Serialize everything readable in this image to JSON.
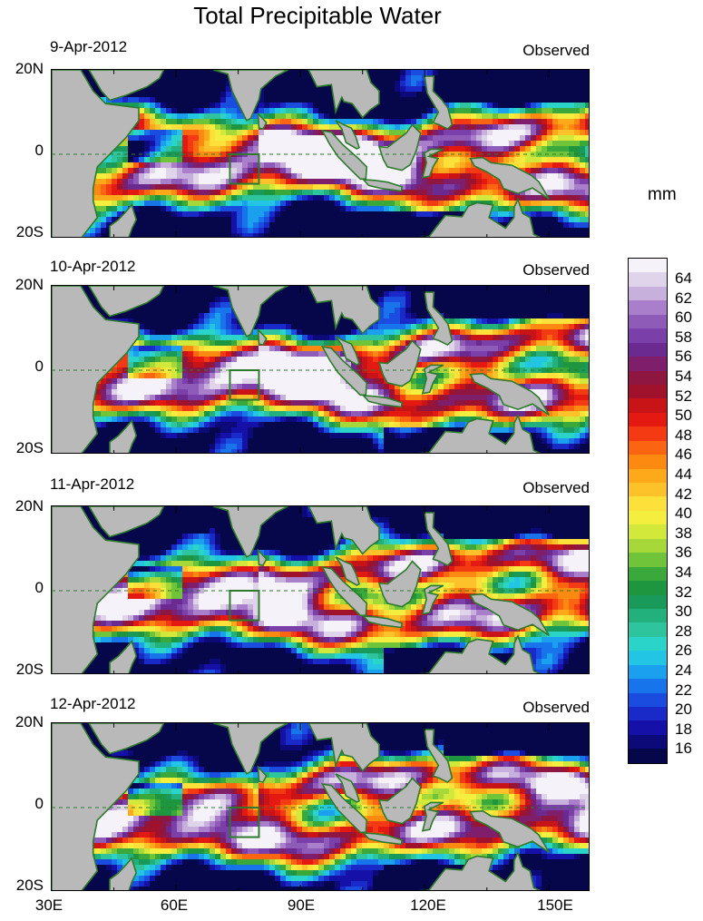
{
  "title": "Total Precipitable Water",
  "unit": "mm",
  "observed_label": "Observed",
  "lat_labels": [
    "20N",
    "0",
    "20S"
  ],
  "lon_labels": [
    "30E",
    "60E",
    "90E",
    "120E",
    "150E"
  ],
  "panels": [
    {
      "date": "9-Apr-2012"
    },
    {
      "date": "10-Apr-2012"
    },
    {
      "date": "11-Apr-2012"
    },
    {
      "date": "12-Apr-2012"
    }
  ],
  "colorbar": {
    "tick_labels": [
      "64",
      "62",
      "60",
      "58",
      "56",
      "54",
      "52",
      "50",
      "48",
      "46",
      "44",
      "42",
      "40",
      "38",
      "36",
      "34",
      "32",
      "30",
      "28",
      "26",
      "24",
      "22",
      "20",
      "18",
      "16"
    ],
    "colors_top_to_bottom": [
      "#f5f2fa",
      "#e0d4ea",
      "#c7b0dc",
      "#a97fcb",
      "#8f5bb8",
      "#7a3fa8",
      "#6a2a8f",
      "#7f1f6c",
      "#8f1640",
      "#a0122c",
      "#c81416",
      "#e41a12",
      "#f43a12",
      "#fb6512",
      "#fc8a10",
      "#fda91a",
      "#fdc22a",
      "#fee03a",
      "#f4ef3e",
      "#d2e83a",
      "#a6d83a",
      "#6fc43a",
      "#3aa83a",
      "#1d963f",
      "#199a5a",
      "#22b07c",
      "#2ec49e",
      "#2ad4c8",
      "#22c6e4",
      "#1aa0ee",
      "#1874ea",
      "#1a4ce0",
      "#1a2ac8",
      "#1410a8",
      "#0c0a78",
      "#06064a"
    ]
  }
}
